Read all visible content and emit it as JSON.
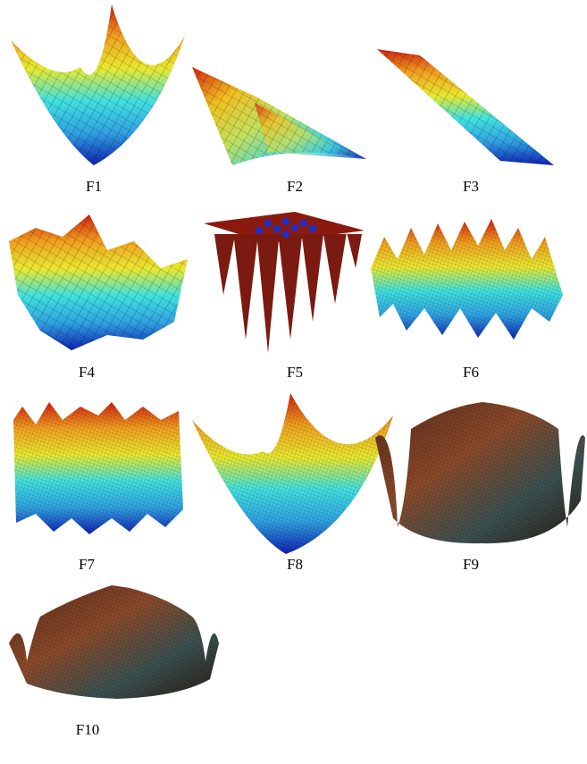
{
  "panels": [
    {
      "label": "F1"
    },
    {
      "label": "F2"
    },
    {
      "label": "F3"
    },
    {
      "label": "F4"
    },
    {
      "label": "F5"
    },
    {
      "label": "F6"
    },
    {
      "label": "F7"
    },
    {
      "label": "F8"
    },
    {
      "label": "F9"
    },
    {
      "label": "F10"
    }
  ]
}
